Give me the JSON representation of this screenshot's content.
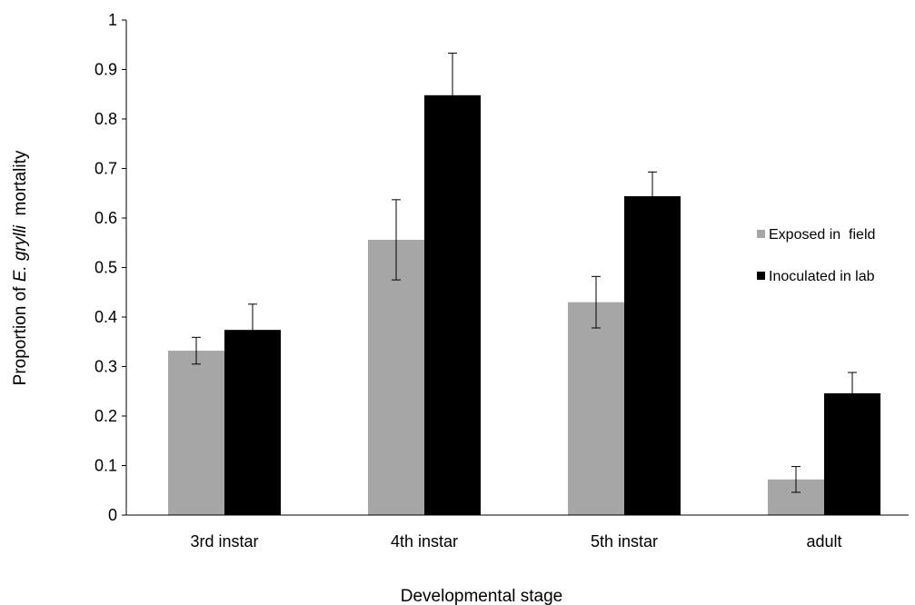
{
  "chart_data": {
    "type": "bar",
    "categories": [
      "3rd instar",
      "4th instar",
      "5th instar",
      "adult"
    ],
    "series": [
      {
        "name": "Exposed in  field",
        "color": "#a6a6a6",
        "values": [
          0.332,
          0.556,
          0.43,
          0.072
        ],
        "errors": [
          0.027,
          0.081,
          0.052,
          0.026
        ]
      },
      {
        "name": "Inoculated in lab",
        "color": "#000000",
        "values": [
          0.374,
          0.848,
          0.644,
          0.246
        ],
        "errors": [
          0.052,
          0.085,
          0.049,
          0.042
        ]
      }
    ],
    "xlabel": "Developmental stage",
    "ylabel_prefix": "Proportion of ",
    "ylabel_italic": "E. grylli",
    "ylabel_suffix": "  mortality",
    "ylim": [
      0,
      1
    ],
    "yticks": [
      "0",
      "0.1",
      "0.2",
      "0.3",
      "0.4",
      "0.5",
      "0.6",
      "0.7",
      "0.8",
      "0.9",
      "1"
    ],
    "grid": false,
    "legend_position": "right"
  }
}
